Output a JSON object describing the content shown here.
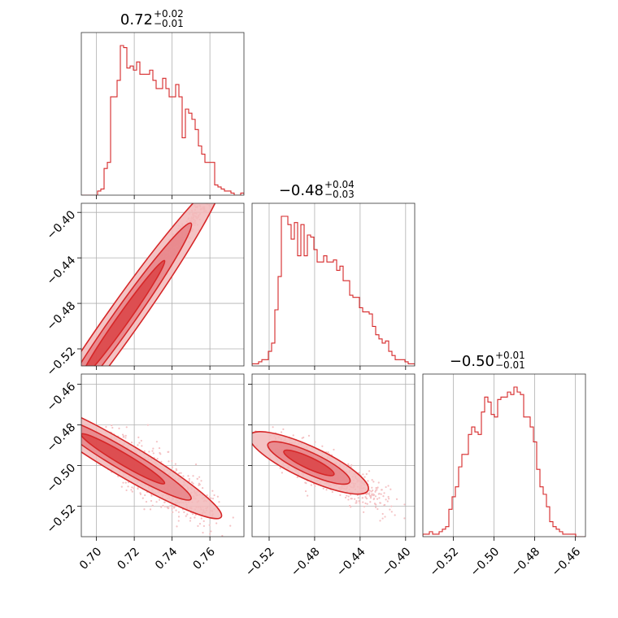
{
  "chart_data": {
    "type": "corner",
    "color": "#d62728",
    "fill_colors": [
      "#f2b8ba",
      "#e57a7f",
      "#d62728"
    ],
    "scatter_color": "#f4c2c4",
    "grid": true,
    "parameters": [
      {
        "title_value": "0.72",
        "title_plus": "+0.02",
        "title_minus": "−0.01",
        "range": [
          0.692,
          0.778
        ],
        "ticks": [
          0.7,
          0.72,
          0.74,
          0.76
        ],
        "tick_labels": [
          "0.70",
          "0.72",
          "0.74",
          "0.76"
        ],
        "median": 0.72,
        "hist_x0": 0.692,
        "hist_bin": 0.00172,
        "hist_counts": [
          0,
          0,
          0,
          0,
          0,
          2,
          3,
          13,
          16,
          48,
          48,
          56,
          73,
          72,
          62,
          63,
          61,
          65,
          59,
          59,
          59,
          61,
          56,
          52,
          52,
          57,
          52,
          48,
          48,
          54,
          48,
          28,
          42,
          40,
          37,
          32,
          24,
          20,
          16,
          16,
          16,
          5,
          4,
          3,
          2,
          2,
          1,
          0,
          0,
          1
        ]
      },
      {
        "title_value": "−0.48",
        "title_plus": "+0.04",
        "title_minus": "−0.03",
        "range": [
          -0.535,
          -0.392
        ],
        "ticks": [
          -0.52,
          -0.48,
          -0.44,
          -0.4
        ],
        "tick_labels": [
          "−0.52",
          "−0.48",
          "−0.44",
          "−0.40"
        ],
        "median": -0.48,
        "hist_x0": -0.535,
        "hist_bin": 0.00286,
        "hist_counts": [
          1,
          1,
          2,
          3,
          3,
          7,
          11,
          27,
          43,
          72,
          72,
          68,
          61,
          69,
          53,
          68,
          53,
          63,
          62,
          56,
          50,
          50,
          53,
          50,
          50,
          51,
          46,
          48,
          41,
          41,
          34,
          33,
          33,
          28,
          26,
          26,
          25,
          19,
          15,
          13,
          11,
          12,
          7,
          5,
          3,
          3,
          3,
          2,
          1,
          1
        ]
      },
      {
        "title_value": "−0.50",
        "title_plus": "+0.01",
        "title_minus": "−0.01",
        "range": [
          -0.535,
          -0.455
        ],
        "ticks": [
          -0.52,
          -0.5,
          -0.48,
          -0.46
        ],
        "tick_labels": [
          "−0.52",
          "−0.50",
          "−0.48",
          "−0.46"
        ],
        "median": -0.5,
        "hist_x0": -0.535,
        "hist_bin": 0.0016,
        "hist_counts": [
          1,
          1,
          2,
          1,
          1,
          2,
          3,
          4,
          11,
          16,
          20,
          28,
          33,
          33,
          41,
          44,
          42,
          41,
          50,
          56,
          54,
          49,
          48,
          55,
          56,
          56,
          58,
          57,
          60,
          58,
          57,
          48,
          48,
          44,
          38,
          27,
          20,
          17,
          12,
          6,
          4,
          3,
          2,
          1,
          1,
          1,
          1,
          0,
          0,
          0
        ]
      }
    ],
    "correlations": [
      {
        "pair": [
          0,
          1
        ],
        "slope": 2.35,
        "spread": 0.0055
      },
      {
        "pair": [
          0,
          2
        ],
        "slope": -0.55,
        "spread": 0.0062
      },
      {
        "pair": [
          1,
          2
        ],
        "slope": -0.26,
        "spread": 0.0045
      }
    ]
  }
}
